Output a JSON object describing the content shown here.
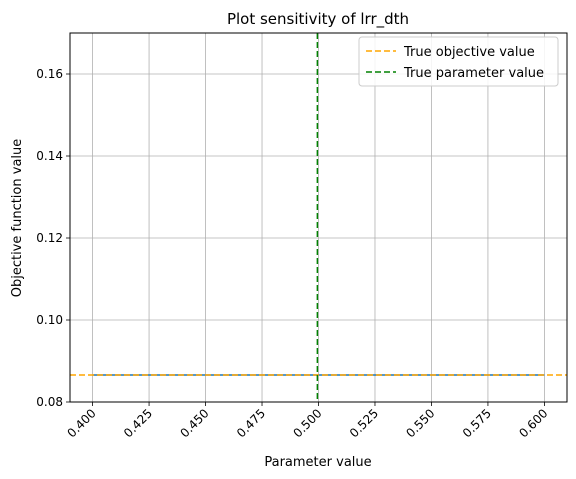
{
  "chart_data": {
    "type": "line",
    "title": "Plot sensitivity of lrr_dth",
    "xlabel": "Parameter value",
    "ylabel": "Objective function value",
    "xlim": [
      0.39,
      0.61
    ],
    "ylim": [
      0.08,
      0.17
    ],
    "xticks": [
      0.4,
      0.425,
      0.45,
      0.475,
      0.5,
      0.525,
      0.55,
      0.575,
      0.6
    ],
    "xtick_labels": [
      "0.400",
      "0.425",
      "0.450",
      "0.475",
      "0.500",
      "0.525",
      "0.550",
      "0.575",
      "0.600"
    ],
    "yticks": [
      0.08,
      0.1,
      0.12,
      0.14,
      0.16
    ],
    "ytick_labels": [
      "0.08",
      "0.10",
      "0.12",
      "0.14",
      "0.16"
    ],
    "grid": true,
    "legend_position": "top-right",
    "series": [
      {
        "name": "",
        "style": "solid",
        "color": "#1f77b4",
        "x": [
          0.4,
          0.425,
          0.45,
          0.475,
          0.5,
          0.525,
          0.55,
          0.575,
          0.6
        ],
        "y": [
          0.0866,
          0.0866,
          0.0866,
          0.0866,
          0.0866,
          0.0866,
          0.0866,
          0.0866,
          0.0866
        ]
      }
    ],
    "reference_lines": [
      {
        "name": "True objective value",
        "orientation": "horizontal",
        "value": 0.0866,
        "color": "#ffa500",
        "style": "dashed"
      },
      {
        "name": "True parameter value",
        "orientation": "vertical",
        "value": 0.4995,
        "color": "#008000",
        "style": "dashed"
      }
    ]
  }
}
